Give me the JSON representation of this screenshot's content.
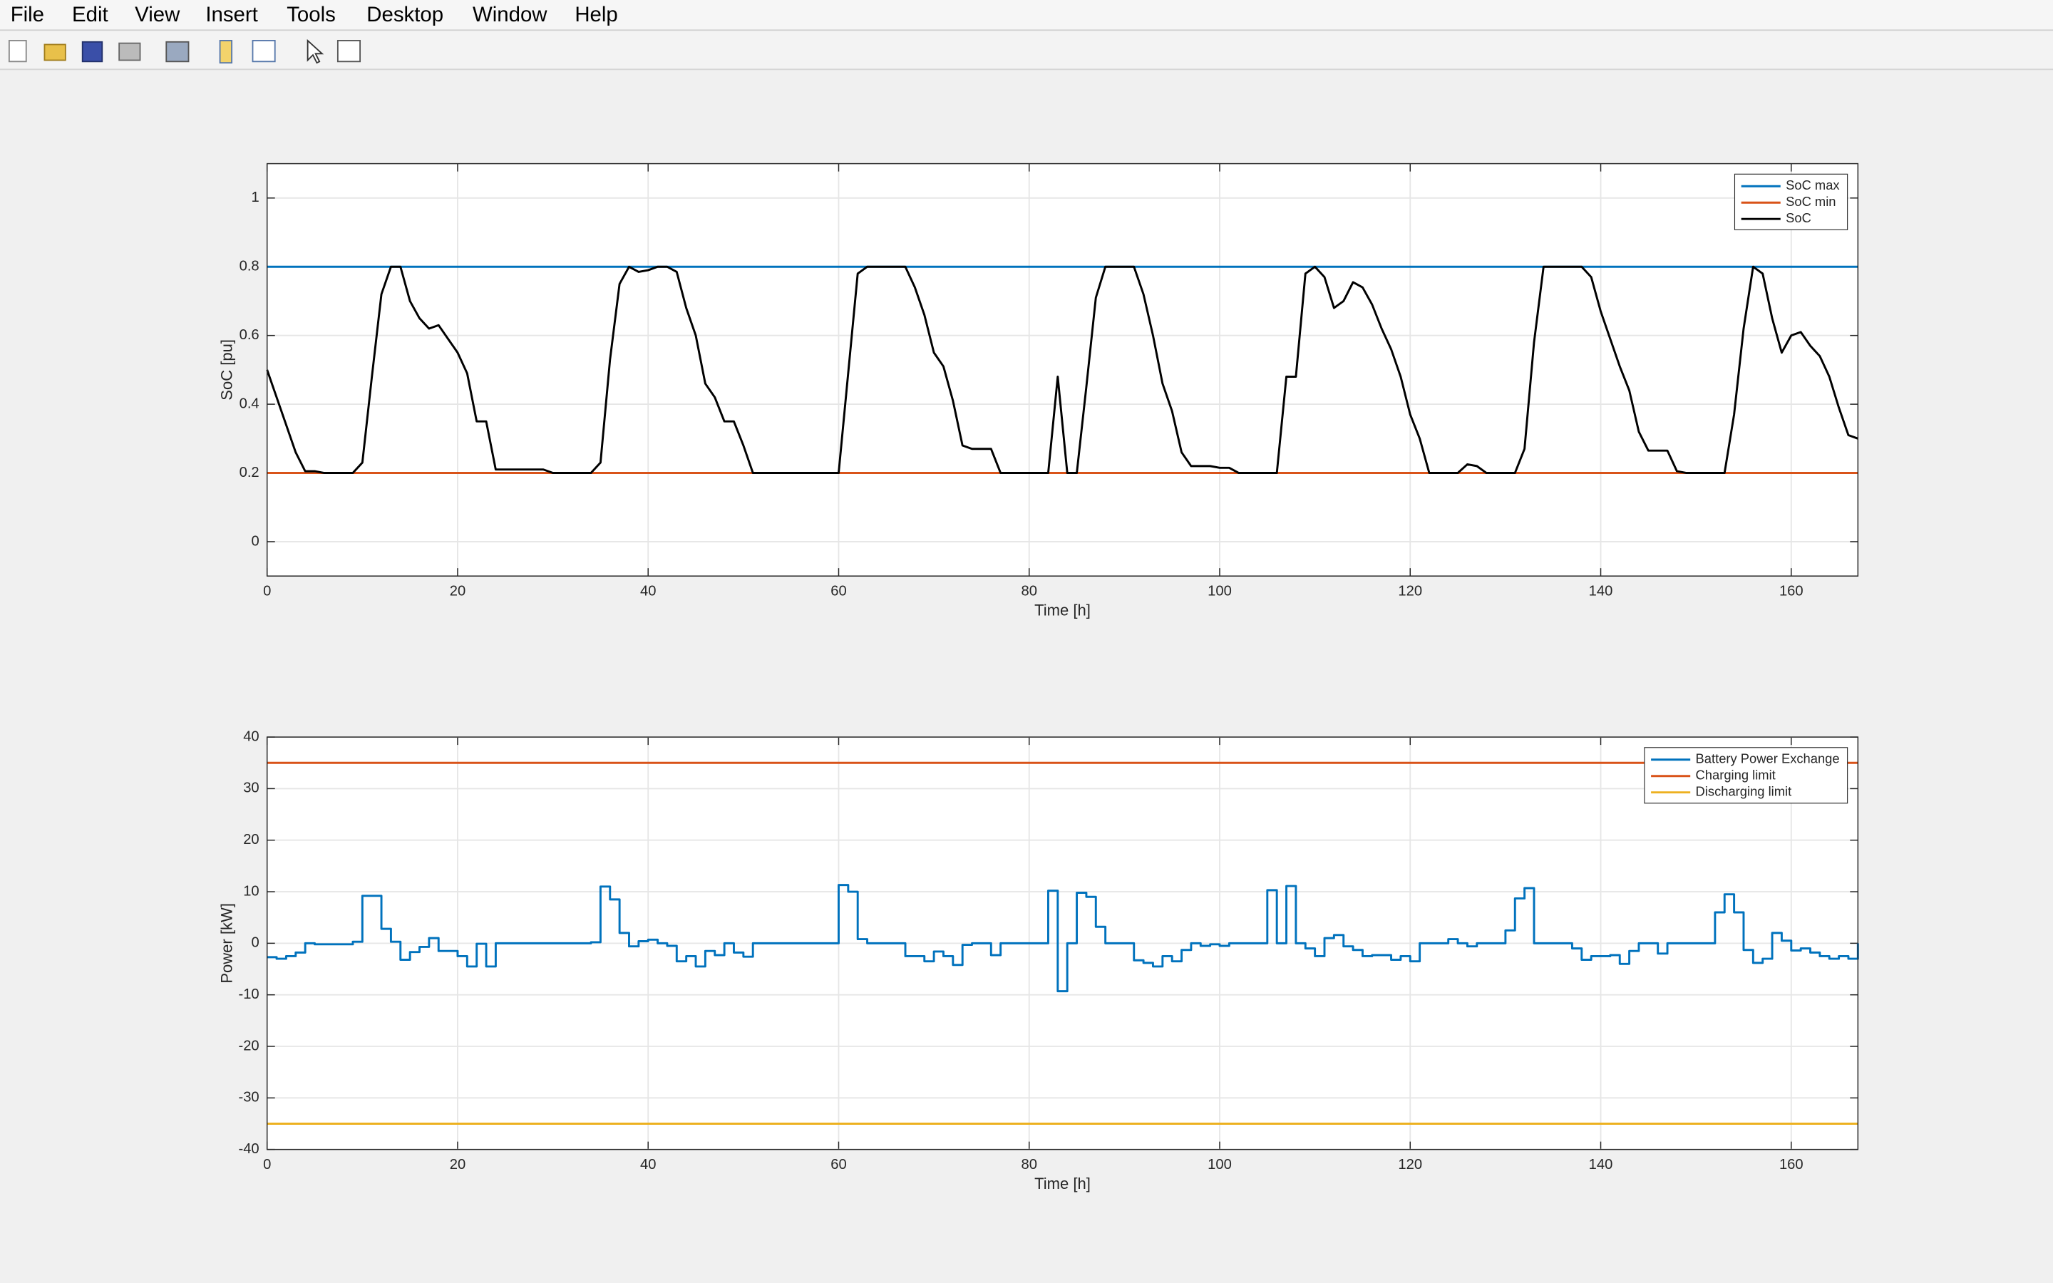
{
  "menu": [
    "File",
    "Edit",
    "View",
    "Insert",
    "Tools",
    "Desktop",
    "Window",
    "Help"
  ],
  "chart_data": [
    {
      "type": "line",
      "xlabel": "Time [h]",
      "ylabel": "SoC [pu]",
      "xlim": [
        0,
        167
      ],
      "ylim": [
        -0.1,
        1.1
      ],
      "xticks": [
        0,
        20,
        40,
        60,
        80,
        100,
        120,
        140,
        160
      ],
      "yticks": [
        0,
        0.2,
        0.4,
        0.6,
        0.8,
        1
      ],
      "grid": true,
      "legend": "northeast",
      "series": [
        {
          "name": "SoC max",
          "color": "#0072BD",
          "x": [
            0,
            167
          ],
          "values": [
            0.8,
            0.8
          ]
        },
        {
          "name": "SoC min",
          "color": "#D95319",
          "x": [
            0,
            167
          ],
          "values": [
            0.2,
            0.2
          ]
        },
        {
          "name": "SoC",
          "color": "#000000",
          "x": [
            0,
            1,
            2,
            3,
            4,
            5,
            6,
            9,
            10,
            11,
            12,
            13,
            14,
            15,
            16,
            17,
            18,
            19,
            20,
            21,
            22,
            23,
            24,
            29,
            30,
            34,
            35,
            36,
            37,
            38,
            39,
            40,
            41,
            42,
            43,
            44,
            45,
            46,
            47,
            48,
            49,
            50,
            51,
            60,
            61,
            62,
            63,
            67,
            68,
            69,
            70,
            71,
            72,
            73,
            74,
            76,
            77,
            82,
            83,
            84,
            85,
            86,
            87,
            88,
            91,
            92,
            93,
            94,
            95,
            96,
            97,
            99,
            100,
            101,
            102,
            106,
            107,
            108,
            109,
            110,
            111,
            112,
            113,
            114,
            115,
            116,
            117,
            118,
            119,
            120,
            121,
            122,
            125,
            126,
            127,
            128,
            131,
            132,
            133,
            134,
            138,
            139,
            140,
            141,
            142,
            143,
            144,
            145,
            147,
            148,
            149,
            153,
            154,
            155,
            156,
            157,
            158,
            159,
            160,
            161,
            162,
            163,
            164,
            165,
            166,
            167
          ],
          "values": [
            0.5,
            0.42,
            0.34,
            0.26,
            0.205,
            0.205,
            0.2,
            0.2,
            0.23,
            0.48,
            0.72,
            0.8,
            0.8,
            0.7,
            0.65,
            0.62,
            0.63,
            0.59,
            0.55,
            0.49,
            0.35,
            0.35,
            0.21,
            0.21,
            0.2,
            0.2,
            0.23,
            0.53,
            0.75,
            0.8,
            0.785,
            0.79,
            0.8,
            0.8,
            0.785,
            0.68,
            0.6,
            0.46,
            0.42,
            0.35,
            0.35,
            0.28,
            0.2,
            0.2,
            0.49,
            0.78,
            0.8,
            0.8,
            0.74,
            0.66,
            0.55,
            0.51,
            0.41,
            0.28,
            0.27,
            0.27,
            0.2,
            0.2,
            0.48,
            0.2,
            0.2,
            0.45,
            0.71,
            0.8,
            0.8,
            0.72,
            0.6,
            0.46,
            0.38,
            0.26,
            0.22,
            0.22,
            0.215,
            0.215,
            0.2,
            0.2,
            0.48,
            0.48,
            0.78,
            0.8,
            0.77,
            0.68,
            0.7,
            0.755,
            0.74,
            0.69,
            0.62,
            0.56,
            0.48,
            0.37,
            0.3,
            0.2,
            0.2,
            0.225,
            0.22,
            0.2,
            0.2,
            0.27,
            0.58,
            0.8,
            0.8,
            0.77,
            0.67,
            0.59,
            0.51,
            0.44,
            0.32,
            0.265,
            0.265,
            0.205,
            0.2,
            0.2,
            0.37,
            0.62,
            0.8,
            0.78,
            0.65,
            0.55,
            0.6,
            0.61,
            0.57,
            0.54,
            0.48,
            0.39,
            0.31,
            0.3
          ]
        }
      ]
    },
    {
      "type": "line",
      "xlabel": "Time [h]",
      "ylabel": "Power [kW]",
      "xlim": [
        0,
        167
      ],
      "ylim": [
        -40,
        40
      ],
      "xticks": [
        0,
        20,
        40,
        60,
        80,
        100,
        120,
        140,
        160
      ],
      "yticks": [
        -40,
        -30,
        -20,
        -10,
        0,
        10,
        20,
        30,
        40
      ],
      "grid": true,
      "legend": "northeast",
      "series": [
        {
          "name": "Battery Power Exchange",
          "color": "#0072BD",
          "step": true,
          "x": [
            0,
            1,
            2,
            3,
            4,
            5,
            9,
            10,
            12,
            13,
            14,
            15,
            16,
            17,
            18,
            20,
            21,
            22,
            23,
            24,
            34,
            35,
            36,
            37,
            38,
            39,
            40,
            41,
            42,
            43,
            44,
            45,
            46,
            47,
            48,
            49,
            50,
            51,
            60,
            61,
            62,
            63,
            67,
            69,
            70,
            71,
            72,
            73,
            74,
            76,
            77,
            82,
            83,
            84,
            85,
            86,
            87,
            88,
            91,
            92,
            93,
            94,
            95,
            96,
            97,
            98,
            99,
            100,
            101,
            105,
            106,
            107,
            108,
            109,
            110,
            111,
            112,
            113,
            114,
            115,
            116,
            118,
            119,
            120,
            121,
            124,
            125,
            126,
            127,
            130,
            131,
            132,
            133,
            137,
            138,
            139,
            141,
            142,
            143,
            144,
            146,
            147,
            152,
            153,
            154,
            155,
            156,
            157,
            158,
            159,
            160,
            161,
            162,
            163,
            164,
            165,
            166,
            167
          ],
          "values": [
            -2.7,
            -3,
            -2.5,
            -1.8,
            0,
            -0.2,
            0.3,
            9.2,
            2.8,
            0.3,
            -3.2,
            -1.7,
            -0.7,
            1,
            -1.5,
            -2.5,
            -4.5,
            -0.1,
            -4.5,
            0,
            0.2,
            11,
            8.5,
            2,
            -0.6,
            0.4,
            0.7,
            0,
            -0.5,
            -3.5,
            -2.5,
            -4.5,
            -1.5,
            -2.3,
            0,
            -1.8,
            -2.6,
            0,
            11.3,
            10,
            0.8,
            0,
            -2.5,
            -3.5,
            -1.6,
            -2.5,
            -4.2,
            -0.3,
            0,
            -2.3,
            0,
            10.2,
            -9.3,
            0,
            9.8,
            9,
            3.2,
            0,
            -3.3,
            -3.8,
            -4.5,
            -2.5,
            -3.5,
            -1.3,
            0,
            -0.5,
            -0.2,
            -0.5,
            0,
            10.3,
            0,
            11.1,
            0,
            -1,
            -2.5,
            1,
            1.6,
            -0.6,
            -1.3,
            -2.5,
            -2.3,
            -3.2,
            -2.5,
            -3.5,
            0,
            0.8,
            0,
            -0.6,
            0,
            2.5,
            8.7,
            10.7,
            0,
            -1,
            -3.2,
            -2.5,
            -2.3,
            -4,
            -1.5,
            0,
            -2,
            0,
            6,
            9.5,
            6,
            -1.3,
            -3.8,
            -3,
            2,
            0.5,
            -1.4,
            -1,
            -1.8,
            -2.5,
            -3,
            -2.5,
            -3,
            0
          ]
        },
        {
          "name": "Charging limit",
          "color": "#D95319",
          "x": [
            0,
            167
          ],
          "values": [
            35,
            35
          ]
        },
        {
          "name": "Discharging limit",
          "color": "#EDB120",
          "x": [
            0,
            167
          ],
          "values": [
            -35,
            -35
          ]
        }
      ]
    }
  ]
}
